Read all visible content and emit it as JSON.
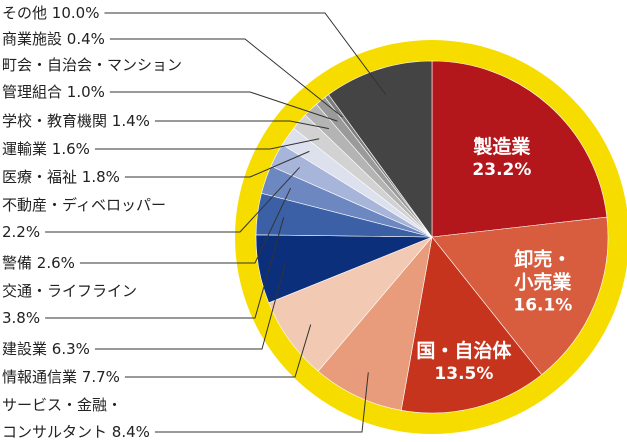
{
  "chart_data": {
    "type": "pie",
    "categories": [
      "製造業",
      "卸売・\n小売業",
      "国・自治体",
      "サービス・金融・\nコンサルタント",
      "情報通信業",
      "建設業",
      "交通・ライフライン\n",
      "警備",
      "不動産・ディベロッパー\n",
      "医療・福祉",
      "運輸業",
      "学校・教育機関",
      "町会・自治会・マンション\n管理組合",
      "商業施設",
      "その他"
    ],
    "values": [
      23.2,
      16.1,
      13.5,
      8.4,
      7.7,
      6.3,
      3.8,
      2.6,
      2.2,
      1.8,
      1.6,
      1.4,
      1.0,
      0.4,
      10.0
    ],
    "value_labels": [
      "23.2%",
      "16.1%",
      "13.5%",
      "8.4%",
      "7.7%",
      "6.3%",
      "3.8%",
      "2.6%",
      "2.2%",
      "1.8%",
      "1.6%",
      "1.4%",
      "1.0%",
      "0.4%",
      "10.0%"
    ],
    "colors": [
      "#b3161b",
      "#d85c3e",
      "#c7341d",
      "#e89c7b",
      "#f2cab3",
      "#0b2f7b",
      "#3c60a6",
      "#6d88c1",
      "#a7b5da",
      "#dde1ee",
      "#d2d2d2",
      "#b4b4b4",
      "#9a9a9a",
      "#7e7e7e",
      "#444444"
    ],
    "ring_color": "#f7dc00"
  }
}
